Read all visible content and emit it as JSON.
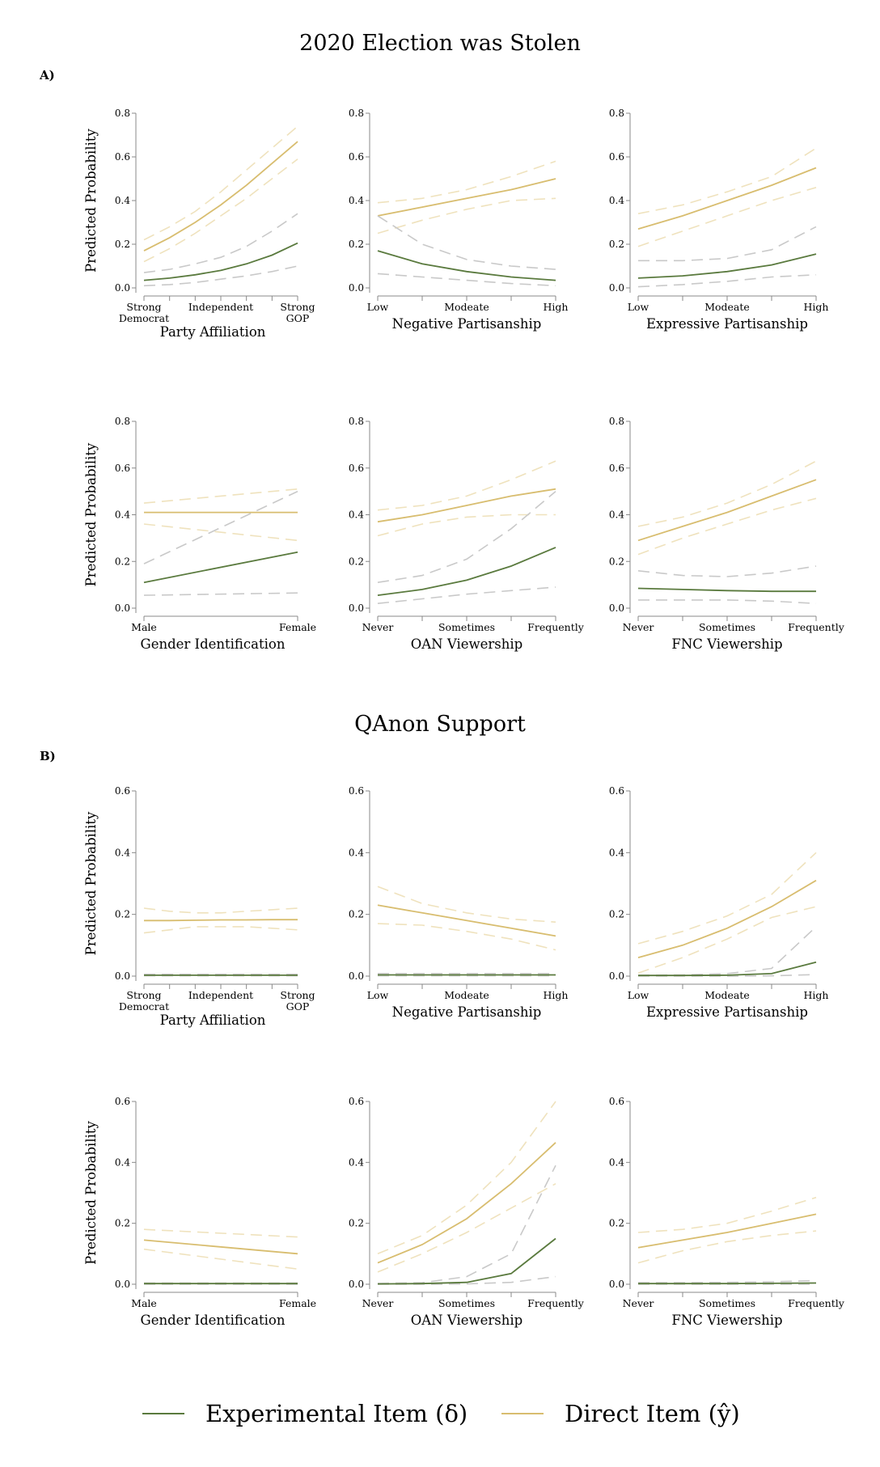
{
  "colors": {
    "experimental": "#5a7a3e",
    "direct": "#d8bd6f",
    "experimental_ci": "#c9c9c9",
    "direct_ci": "#efe2bd",
    "axis": "#888888"
  },
  "sections": [
    {
      "title": "2020 Election was Stolen",
      "letter": "A)"
    },
    {
      "title": "QAnon Support",
      "letter": "B)"
    }
  ],
  "legend": {
    "experimental_label": "Experimental Item (δ)",
    "direct_label": "Direct Item (ŷ)"
  },
  "chart_data": [
    {
      "id": "A1",
      "type": "line",
      "xlabel": "Party Affiliation",
      "ylabel": "Predicted Probability",
      "ylim": [
        0,
        0.8
      ],
      "yticks": [
        "0.0",
        "0.2",
        "0.4",
        "0.6",
        "0.8"
      ],
      "x_tick_labels": [
        "Strong Democrat",
        "Independent",
        "Strong GOP"
      ],
      "x_tick_positions": [
        0,
        3,
        6
      ],
      "x": [
        0,
        1,
        2,
        3,
        4,
        5,
        6
      ],
      "series": [
        {
          "role": "experimental",
          "values": [
            0.035,
            0.045,
            0.06,
            0.08,
            0.11,
            0.15,
            0.205
          ],
          "lower": [
            0.01,
            0.015,
            0.025,
            0.04,
            0.055,
            0.075,
            0.1
          ],
          "upper": [
            0.07,
            0.085,
            0.11,
            0.14,
            0.19,
            0.26,
            0.34
          ]
        },
        {
          "role": "direct",
          "values": [
            0.17,
            0.23,
            0.3,
            0.38,
            0.47,
            0.57,
            0.67
          ],
          "lower": [
            0.12,
            0.18,
            0.25,
            0.33,
            0.41,
            0.5,
            0.59
          ],
          "upper": [
            0.22,
            0.28,
            0.35,
            0.44,
            0.54,
            0.64,
            0.74
          ]
        }
      ]
    },
    {
      "id": "A2",
      "type": "line",
      "xlabel": "Negative Partisanship",
      "ylabel": "",
      "ylim": [
        0,
        0.8
      ],
      "yticks": [
        "0.0",
        "0.2",
        "0.4",
        "0.6",
        "0.8"
      ],
      "x_tick_labels": [
        "Low",
        "Modeate",
        "High"
      ],
      "x_tick_positions": [
        0,
        2,
        4
      ],
      "x": [
        0,
        1,
        2,
        3,
        4
      ],
      "series": [
        {
          "role": "experimental",
          "values": [
            0.17,
            0.11,
            0.075,
            0.05,
            0.035
          ],
          "lower": [
            0.065,
            0.05,
            0.035,
            0.02,
            0.01
          ],
          "upper": [
            0.33,
            0.2,
            0.13,
            0.1,
            0.085
          ]
        },
        {
          "role": "direct",
          "values": [
            0.33,
            0.37,
            0.41,
            0.45,
            0.5
          ],
          "lower": [
            0.25,
            0.31,
            0.36,
            0.4,
            0.41
          ],
          "upper": [
            0.39,
            0.41,
            0.45,
            0.51,
            0.58
          ]
        }
      ]
    },
    {
      "id": "A3",
      "type": "line",
      "xlabel": "Expressive Partisanship",
      "ylabel": "",
      "ylim": [
        0,
        0.8
      ],
      "yticks": [
        "0.0",
        "0.2",
        "0.4",
        "0.6",
        "0.8"
      ],
      "x_tick_labels": [
        "Low",
        "Modeate",
        "High"
      ],
      "x_tick_positions": [
        0,
        2,
        4
      ],
      "x": [
        0,
        1,
        2,
        3,
        4
      ],
      "series": [
        {
          "role": "experimental",
          "values": [
            0.045,
            0.055,
            0.075,
            0.105,
            0.155
          ],
          "lower": [
            0.005,
            0.015,
            0.03,
            0.05,
            0.06
          ],
          "upper": [
            0.125,
            0.125,
            0.135,
            0.175,
            0.28
          ]
        },
        {
          "role": "direct",
          "values": [
            0.27,
            0.33,
            0.4,
            0.47,
            0.55
          ],
          "lower": [
            0.19,
            0.26,
            0.33,
            0.4,
            0.46
          ],
          "upper": [
            0.34,
            0.38,
            0.44,
            0.51,
            0.64
          ]
        }
      ]
    },
    {
      "id": "A4",
      "type": "line",
      "xlabel": "Gender Identification",
      "ylabel": "Predicted Probability",
      "ylim": [
        0,
        0.8
      ],
      "yticks": [
        "0.0",
        "0.2",
        "0.4",
        "0.6",
        "0.8"
      ],
      "x_tick_labels": [
        "Male",
        "Female"
      ],
      "x_tick_positions": [
        0,
        1
      ],
      "x": [
        0,
        1
      ],
      "series": [
        {
          "role": "experimental",
          "values": [
            0.11,
            0.24
          ],
          "lower": [
            0.055,
            0.065
          ],
          "upper": [
            0.19,
            0.5
          ]
        },
        {
          "role": "direct",
          "values": [
            0.41,
            0.41
          ],
          "lower": [
            0.36,
            0.29
          ],
          "upper": [
            0.45,
            0.51
          ]
        }
      ]
    },
    {
      "id": "A5",
      "type": "line",
      "xlabel": "OAN Viewership",
      "ylabel": "",
      "ylim": [
        0,
        0.8
      ],
      "yticks": [
        "0.0",
        "0.2",
        "0.4",
        "0.6",
        "0.8"
      ],
      "x_tick_labels": [
        "Never",
        "Sometimes",
        "Frequently"
      ],
      "x_tick_positions": [
        0,
        2,
        4
      ],
      "x": [
        0,
        1,
        2,
        3,
        4
      ],
      "series": [
        {
          "role": "experimental",
          "values": [
            0.055,
            0.08,
            0.12,
            0.18,
            0.26
          ],
          "lower": [
            0.02,
            0.04,
            0.06,
            0.075,
            0.09
          ],
          "upper": [
            0.11,
            0.14,
            0.21,
            0.34,
            0.5
          ]
        },
        {
          "role": "direct",
          "values": [
            0.37,
            0.4,
            0.44,
            0.48,
            0.51
          ],
          "lower": [
            0.31,
            0.36,
            0.39,
            0.4,
            0.4
          ],
          "upper": [
            0.42,
            0.44,
            0.48,
            0.55,
            0.63
          ]
        }
      ]
    },
    {
      "id": "A6",
      "type": "line",
      "xlabel": "FNC Viewership",
      "ylabel": "",
      "ylim": [
        0,
        0.8
      ],
      "yticks": [
        "0.0",
        "0.2",
        "0.4",
        "0.6",
        "0.8"
      ],
      "x_tick_labels": [
        "Never",
        "Sometimes",
        "Frequently"
      ],
      "x_tick_positions": [
        0,
        2,
        4
      ],
      "x": [
        0,
        1,
        2,
        3,
        4
      ],
      "series": [
        {
          "role": "experimental",
          "values": [
            0.085,
            0.08,
            0.075,
            0.072,
            0.072
          ],
          "lower": [
            0.035,
            0.035,
            0.035,
            0.03,
            0.02
          ],
          "upper": [
            0.16,
            0.14,
            0.135,
            0.15,
            0.18
          ]
        },
        {
          "role": "direct",
          "values": [
            0.29,
            0.35,
            0.41,
            0.48,
            0.55
          ],
          "lower": [
            0.23,
            0.3,
            0.36,
            0.42,
            0.47
          ],
          "upper": [
            0.35,
            0.39,
            0.45,
            0.53,
            0.63
          ]
        }
      ]
    },
    {
      "id": "B1",
      "type": "line",
      "xlabel": "Party Affiliation",
      "ylabel": "Predicted Probability",
      "ylim": [
        0,
        0.6
      ],
      "yticks": [
        "0.0",
        "0.2",
        "0.4",
        "0.6"
      ],
      "x_tick_labels": [
        "Strong Democrat",
        "Independent",
        "Strong GOP"
      ],
      "x_tick_positions": [
        0,
        3,
        6
      ],
      "x": [
        0,
        1,
        2,
        3,
        4,
        5,
        6
      ],
      "series": [
        {
          "role": "experimental",
          "values": [
            0.003,
            0.003,
            0.003,
            0.003,
            0.003,
            0.003,
            0.003
          ],
          "lower": [
            0.001,
            0.001,
            0.001,
            0.001,
            0.001,
            0.001,
            0.001
          ],
          "upper": [
            0.006,
            0.006,
            0.006,
            0.006,
            0.006,
            0.006,
            0.006
          ]
        },
        {
          "role": "direct",
          "values": [
            0.18,
            0.18,
            0.181,
            0.182,
            0.182,
            0.183,
            0.183
          ],
          "lower": [
            0.14,
            0.15,
            0.16,
            0.16,
            0.16,
            0.155,
            0.15
          ],
          "upper": [
            0.22,
            0.21,
            0.205,
            0.205,
            0.21,
            0.215,
            0.22
          ]
        }
      ]
    },
    {
      "id": "B2",
      "type": "line",
      "xlabel": "Negative Partisanship",
      "ylabel": "",
      "ylim": [
        0,
        0.6
      ],
      "yticks": [
        "0.0",
        "0.2",
        "0.4",
        "0.6"
      ],
      "x_tick_labels": [
        "Low",
        "Modeate",
        "High"
      ],
      "x_tick_positions": [
        0,
        2,
        4
      ],
      "x": [
        0,
        1,
        2,
        3,
        4
      ],
      "series": [
        {
          "role": "experimental",
          "values": [
            0.004,
            0.004,
            0.004,
            0.004,
            0.004
          ],
          "lower": [
            0.001,
            0.001,
            0.001,
            0.001,
            0.001
          ],
          "upper": [
            0.008,
            0.008,
            0.008,
            0.008,
            0.008
          ]
        },
        {
          "role": "direct",
          "values": [
            0.23,
            0.205,
            0.18,
            0.155,
            0.13
          ],
          "lower": [
            0.17,
            0.165,
            0.145,
            0.12,
            0.085
          ],
          "upper": [
            0.29,
            0.235,
            0.205,
            0.185,
            0.175
          ]
        }
      ]
    },
    {
      "id": "B3",
      "type": "line",
      "xlabel": "Expressive Partisanship",
      "ylabel": "",
      "ylim": [
        0,
        0.6
      ],
      "yticks": [
        "0.0",
        "0.2",
        "0.4",
        "0.6"
      ],
      "x_tick_labels": [
        "Low",
        "Modeate",
        "High"
      ],
      "x_tick_positions": [
        0,
        2,
        4
      ],
      "x": [
        0,
        1,
        2,
        3,
        4
      ],
      "series": [
        {
          "role": "experimental",
          "values": [
            0.002,
            0.002,
            0.003,
            0.008,
            0.045
          ],
          "lower": [
            0.0,
            0.0,
            0.0,
            0.001,
            0.005
          ],
          "upper": [
            0.003,
            0.004,
            0.008,
            0.025,
            0.16
          ]
        },
        {
          "role": "direct",
          "values": [
            0.06,
            0.1,
            0.155,
            0.225,
            0.31
          ],
          "lower": [
            0.01,
            0.06,
            0.12,
            0.19,
            0.225
          ],
          "upper": [
            0.105,
            0.145,
            0.195,
            0.265,
            0.4
          ]
        }
      ]
    },
    {
      "id": "B4",
      "type": "line",
      "xlabel": "Gender Identification",
      "ylabel": "Predicted Probability",
      "ylim": [
        0,
        0.6
      ],
      "yticks": [
        "0.0",
        "0.2",
        "0.4",
        "0.6"
      ],
      "x_tick_labels": [
        "Male",
        "Female"
      ],
      "x_tick_positions": [
        0,
        1
      ],
      "x": [
        0,
        1
      ],
      "series": [
        {
          "role": "experimental",
          "values": [
            0.002,
            0.002
          ],
          "lower": [
            0.0,
            0.0
          ],
          "upper": [
            0.004,
            0.004
          ]
        },
        {
          "role": "direct",
          "values": [
            0.145,
            0.1
          ],
          "lower": [
            0.115,
            0.05
          ],
          "upper": [
            0.18,
            0.155
          ]
        }
      ]
    },
    {
      "id": "B5",
      "type": "line",
      "xlabel": "OAN Viewership",
      "ylabel": "",
      "ylim": [
        0,
        0.6
      ],
      "yticks": [
        "0.0",
        "0.2",
        "0.4",
        "0.6"
      ],
      "x_tick_labels": [
        "Never",
        "Sometimes",
        "Frequently"
      ],
      "x_tick_positions": [
        0,
        2,
        4
      ],
      "x": [
        0,
        1,
        2,
        3,
        4
      ],
      "series": [
        {
          "role": "experimental",
          "values": [
            0.001,
            0.002,
            0.006,
            0.035,
            0.15
          ],
          "lower": [
            0.0,
            0.0,
            0.001,
            0.006,
            0.025
          ],
          "upper": [
            0.003,
            0.005,
            0.025,
            0.1,
            0.39
          ]
        },
        {
          "role": "direct",
          "values": [
            0.07,
            0.13,
            0.215,
            0.33,
            0.465
          ],
          "lower": [
            0.04,
            0.1,
            0.17,
            0.25,
            0.33
          ],
          "upper": [
            0.1,
            0.16,
            0.26,
            0.4,
            0.6
          ]
        }
      ]
    },
    {
      "id": "B6",
      "type": "line",
      "xlabel": "FNC Viewership",
      "ylabel": "",
      "ylim": [
        0,
        0.6
      ],
      "yticks": [
        "0.0",
        "0.2",
        "0.4",
        "0.6"
      ],
      "x_tick_labels": [
        "Never",
        "Sometimes",
        "Frequently"
      ],
      "x_tick_positions": [
        0,
        2,
        4
      ],
      "x": [
        0,
        1,
        2,
        3,
        4
      ],
      "series": [
        {
          "role": "experimental",
          "values": [
            0.002,
            0.002,
            0.002,
            0.003,
            0.004
          ],
          "lower": [
            0.0,
            0.0,
            0.0,
            0.0,
            0.0
          ],
          "upper": [
            0.005,
            0.005,
            0.006,
            0.008,
            0.012
          ]
        },
        {
          "role": "direct",
          "values": [
            0.12,
            0.145,
            0.17,
            0.2,
            0.23
          ],
          "lower": [
            0.07,
            0.11,
            0.14,
            0.16,
            0.175
          ],
          "upper": [
            0.17,
            0.18,
            0.2,
            0.24,
            0.285
          ]
        }
      ]
    }
  ]
}
